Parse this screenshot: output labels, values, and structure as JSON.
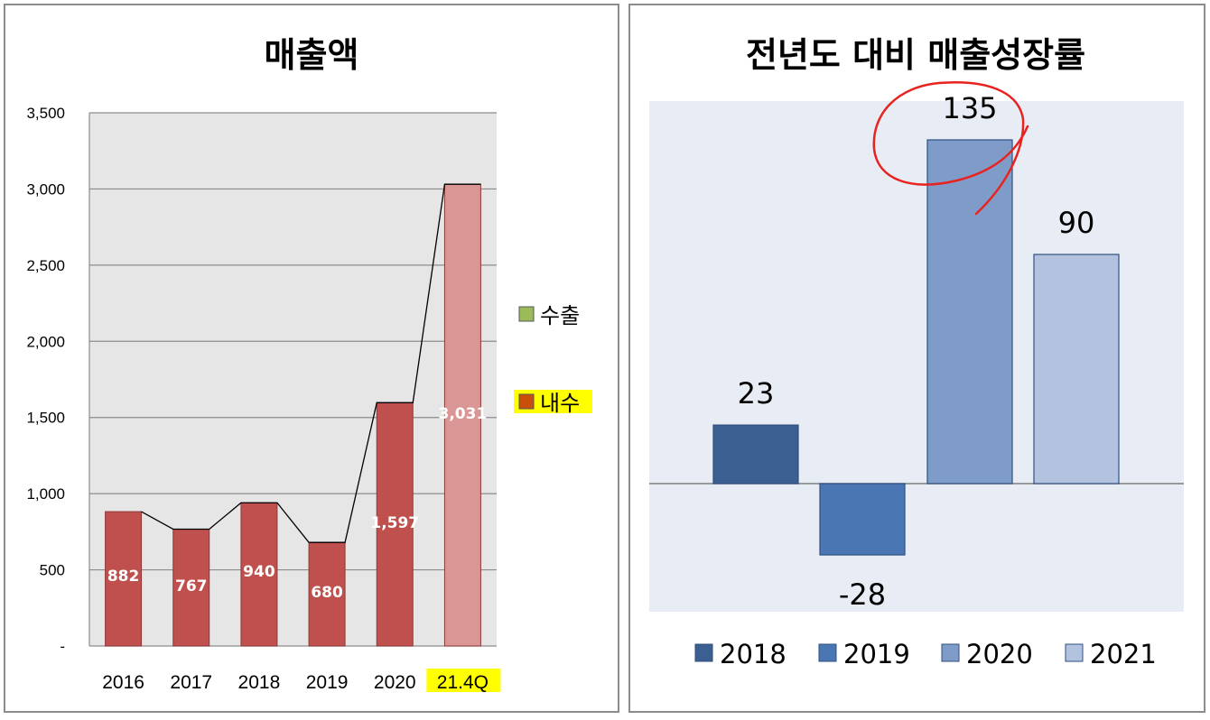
{
  "chart_data": [
    {
      "type": "bar",
      "title": "매출액",
      "categories": [
        "2016",
        "2017",
        "2018",
        "2019",
        "2020",
        "21.4Q"
      ],
      "series": [
        {
          "name": "수출",
          "values": [
            0,
            0,
            0,
            0,
            0,
            0
          ]
        },
        {
          "name": "내수",
          "values": [
            882,
            767,
            940,
            680,
            1597,
            3031
          ]
        }
      ],
      "data_labels": [
        "882",
        "767",
        "940",
        "680",
        "1,597",
        "3,031"
      ],
      "y_ticks": [
        "-",
        "500",
        "1,000",
        "1,500",
        "2,000",
        "2,500",
        "3,000",
        "3,500"
      ],
      "ylim": [
        0,
        3500
      ],
      "grid": true,
      "legend_position": "right",
      "highlighted_category": "21.4Q",
      "highlighted_legend": "내수",
      "colors": {
        "bar": "#c0504d",
        "bar_highlight": "#d99694",
        "export": "#9bbb59",
        "domestic": "#c8500a",
        "highlight": "#ffff00",
        "plot_bg": "#e6e6e6"
      }
    },
    {
      "type": "bar",
      "title": "전년도 대비 매출성장률",
      "categories": [
        "2018",
        "2019",
        "2020",
        "2021"
      ],
      "values": [
        23,
        -28,
        135,
        90
      ],
      "data_labels": [
        "23",
        "-28",
        "135",
        "90"
      ],
      "ylim": [
        -50,
        150
      ],
      "grid": false,
      "legend_position": "bottom",
      "annotation": "red hand-drawn circle around 135",
      "colors": {
        "bars": [
          "#3b5f91",
          "#4a77b4",
          "#7f9cc8",
          "#b3c3df"
        ],
        "plot_bg": "#e8ecf4",
        "annotation": "#e8221f"
      }
    }
  ]
}
